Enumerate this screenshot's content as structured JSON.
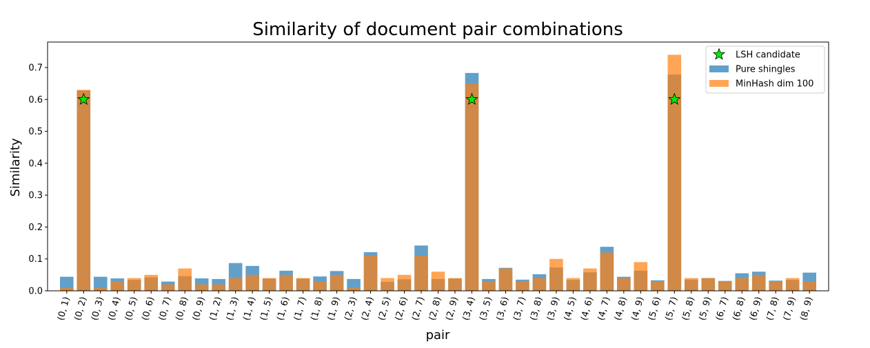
{
  "chart_data": {
    "type": "bar",
    "title": "Similarity of document pair combinations",
    "xlabel": "pair",
    "ylabel": "Similarity",
    "ylim": [
      0,
      0.78
    ],
    "yticks": [
      "0.0",
      "0.1",
      "0.2",
      "0.3",
      "0.4",
      "0.5",
      "0.6",
      "0.7"
    ],
    "legend_position": "top-right",
    "grid": false,
    "categories": [
      "(0, 1)",
      "(0, 2)",
      "(0, 3)",
      "(0, 4)",
      "(0, 5)",
      "(0, 6)",
      "(0, 7)",
      "(0, 8)",
      "(0, 9)",
      "(1, 2)",
      "(1, 3)",
      "(1, 4)",
      "(1, 5)",
      "(1, 6)",
      "(1, 7)",
      "(1, 8)",
      "(1, 9)",
      "(2, 3)",
      "(2, 4)",
      "(2, 5)",
      "(2, 6)",
      "(2, 7)",
      "(2, 8)",
      "(2, 9)",
      "(3, 4)",
      "(3, 5)",
      "(3, 6)",
      "(3, 7)",
      "(3, 8)",
      "(3, 9)",
      "(4, 5)",
      "(4, 6)",
      "(4, 7)",
      "(4, 8)",
      "(4, 9)",
      "(5, 6)",
      "(5, 7)",
      "(5, 8)",
      "(5, 9)",
      "(6, 7)",
      "(6, 8)",
      "(6, 9)",
      "(7, 8)",
      "(7, 9)",
      "(8, 9)"
    ],
    "series": [
      {
        "name": "Pure shingles",
        "kind": "bar",
        "color": "#1f77b4",
        "opacity": 0.7,
        "values": [
          0.044,
          0.628,
          0.044,
          0.039,
          0.034,
          0.042,
          0.029,
          0.046,
          0.039,
          0.037,
          0.087,
          0.078,
          0.038,
          0.063,
          0.038,
          0.045,
          0.062,
          0.037,
          0.121,
          0.028,
          0.036,
          0.142,
          0.037,
          0.038,
          0.683,
          0.037,
          0.072,
          0.035,
          0.052,
          0.073,
          0.034,
          0.058,
          0.138,
          0.044,
          0.063,
          0.033,
          0.678,
          0.035,
          0.04,
          0.031,
          0.055,
          0.06,
          0.032,
          0.034,
          0.057
        ]
      },
      {
        "name": "MinHash dim 100",
        "kind": "bar",
        "color": "#ff7f0e",
        "opacity": 0.7,
        "values": [
          0.01,
          0.63,
          0.01,
          0.03,
          0.04,
          0.05,
          0.02,
          0.07,
          0.02,
          0.02,
          0.04,
          0.05,
          0.04,
          0.05,
          0.04,
          0.03,
          0.05,
          0.01,
          0.11,
          0.04,
          0.05,
          0.11,
          0.06,
          0.04,
          0.65,
          0.03,
          0.07,
          0.03,
          0.04,
          0.1,
          0.04,
          0.07,
          0.12,
          0.04,
          0.09,
          0.03,
          0.74,
          0.04,
          0.04,
          0.03,
          0.04,
          0.05,
          0.03,
          0.04,
          0.03
        ]
      },
      {
        "name": "LSH candidate",
        "kind": "marker",
        "marker": "star",
        "color": "#00ee00",
        "points": [
          {
            "category": "(0, 2)",
            "value": 0.6
          },
          {
            "category": "(3, 4)",
            "value": 0.6
          },
          {
            "category": "(5, 7)",
            "value": 0.6
          }
        ]
      }
    ]
  }
}
